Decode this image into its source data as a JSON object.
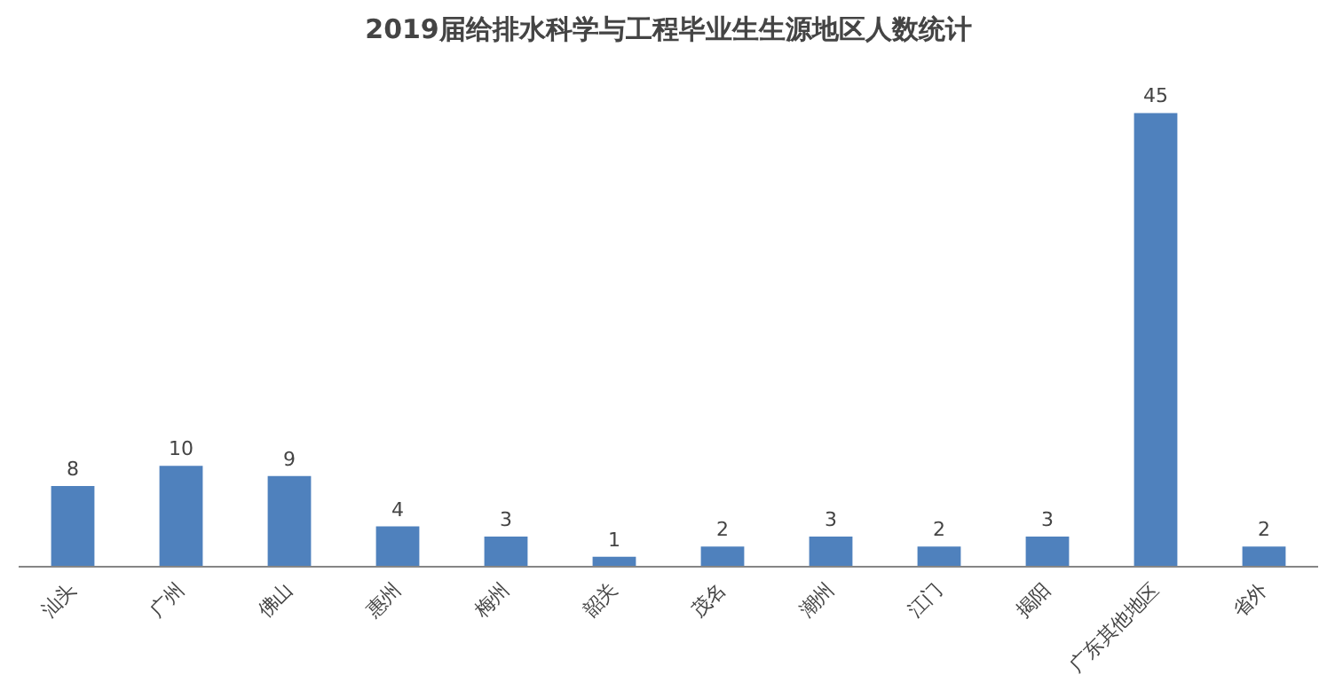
{
  "chart_data": {
    "type": "bar",
    "title": "2019届给排水科学与工程毕业生生源地区人数统计",
    "categories": [
      "汕头",
      "广州",
      "佛山",
      "惠州",
      "梅州",
      "韶关",
      "茂名",
      "潮州",
      "江门",
      "揭阳",
      "广东其他地区",
      "省外"
    ],
    "values": [
      8,
      10,
      9,
      4,
      3,
      1,
      2,
      3,
      2,
      3,
      45,
      2
    ],
    "color": "#4f81bd",
    "data_labels": true,
    "grid": false
  }
}
